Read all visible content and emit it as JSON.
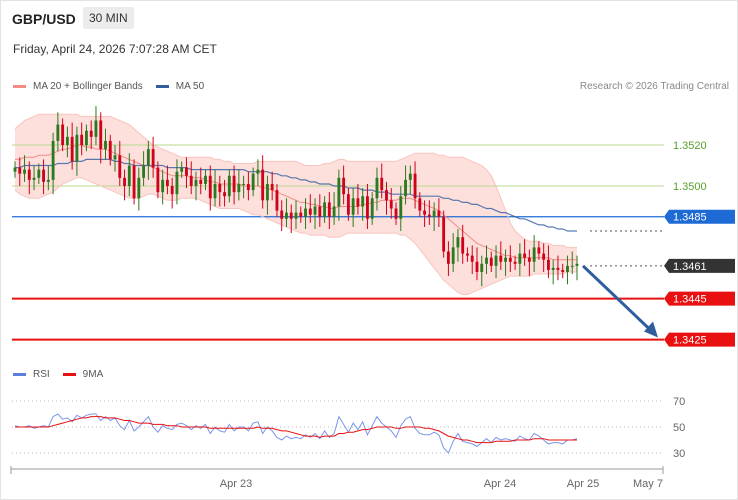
{
  "header": {
    "pair": "GBP/USD",
    "timeframe": "30 MIN",
    "datetime": "Friday, April 24, 2026 7:07:28 AM CET",
    "copyright": "Research © 2026 Trading Central"
  },
  "legend": {
    "main": [
      {
        "label": "MA 20 + Bollinger Bands",
        "color": "#f28b82"
      },
      {
        "label": "MA 50",
        "color": "#2f5d9e"
      }
    ],
    "rsi": [
      {
        "label": "RSI",
        "color": "#5b7fe0"
      },
      {
        "label": "9MA",
        "color": "#e81010"
      }
    ]
  },
  "chart_data": {
    "type": "candlestick",
    "xlabel": "",
    "ylabel": "",
    "ylim": [
      1.3416,
      1.3542
    ],
    "x_tick_labels": [
      "Apr 23",
      "Apr 24",
      "Apr 25",
      "May 7"
    ],
    "price_levels": [
      {
        "label": "1.3520",
        "value": 1.352,
        "color": "#5aa02c",
        "style": "pivot"
      },
      {
        "label": "1.3500",
        "value": 1.35,
        "color": "#5aa02c",
        "style": "pivot"
      },
      {
        "label": "1.3485",
        "value": 1.3485,
        "color": "#1e6bd6",
        "style": "resistance"
      },
      {
        "label": "1.3461",
        "value": 1.3461,
        "color": "#333333",
        "style": "current"
      },
      {
        "label": "1.3445",
        "value": 1.3445,
        "color": "#e81010",
        "style": "support"
      },
      {
        "label": "1.3425",
        "value": 1.3425,
        "color": "#e81010",
        "style": "support"
      }
    ],
    "candles_close": [
      1.3509,
      1.3506,
      1.3508,
      1.3503,
      1.3504,
      1.3508,
      1.3502,
      1.3503,
      1.3522,
      1.353,
      1.352,
      1.3524,
      1.3512,
      1.3525,
      1.352,
      1.3527,
      1.3524,
      1.3532,
      1.3518,
      1.3522,
      1.3513,
      1.3515,
      1.3504,
      1.35,
      1.351,
      1.3494,
      1.3504,
      1.351,
      1.3518,
      1.3509,
      1.3497,
      1.3503,
      1.35,
      1.3496,
      1.3507,
      1.3509,
      1.3505,
      1.35,
      1.3503,
      1.3501,
      1.3505,
      1.3494,
      1.3501,
      1.3497,
      1.3495,
      1.3505,
      1.3497,
      1.3501,
      1.3501,
      1.3498,
      1.3506,
      1.3508,
      1.3493,
      1.3501,
      1.3498,
      1.3488,
      1.3484,
      1.3487,
      1.3484,
      1.3487,
      1.3485,
      1.3489,
      1.3486,
      1.349,
      1.3485,
      1.3492,
      1.3485,
      1.349,
      1.3504,
      1.3496,
      1.3486,
      1.3494,
      1.349,
      1.3495,
      1.3484,
      1.3494,
      1.3504,
      1.3498,
      1.3493,
      1.3489,
      1.3484,
      1.3495,
      1.3503,
      1.3506,
      1.3494,
      1.3488,
      1.3486,
      1.3485,
      1.3488,
      1.3485,
      1.3468,
      1.3462,
      1.347,
      1.3475,
      1.3467,
      1.3466,
      1.3463,
      1.3458,
      1.3462,
      1.3465,
      1.3461,
      1.3466,
      1.3463,
      1.3465,
      1.3463,
      1.3462,
      1.3467,
      1.3465,
      1.3463,
      1.347,
      1.3467,
      1.3464,
      1.3459,
      1.346,
      1.3459,
      1.3458,
      1.3461,
      1.3461,
      1.3462
    ],
    "ma20": [
      1.3513,
      1.3513,
      1.3514,
      1.3514,
      1.3514,
      1.3515,
      1.3515,
      1.3515,
      1.3516,
      1.3517,
      1.3518,
      1.3518,
      1.3519,
      1.352,
      1.352,
      1.3519,
      1.3519,
      1.3518,
      1.3518,
      1.3518,
      1.3517,
      1.3516,
      1.3515,
      1.3514,
      1.3513,
      1.3512,
      1.3511,
      1.351,
      1.351,
      1.3509,
      1.3508,
      1.3507,
      1.3506,
      1.3505,
      1.3505,
      1.3505,
      1.3505,
      1.3504,
      1.3504,
      1.3504,
      1.3503,
      1.3502,
      1.3502,
      1.3501,
      1.3501,
      1.3501,
      1.3501,
      1.3501,
      1.35,
      1.35,
      1.35,
      1.35,
      1.3499,
      1.3499,
      1.3498,
      1.3497,
      1.3496,
      1.3495,
      1.3494,
      1.3493,
      1.3492,
      1.3492,
      1.3491,
      1.3491,
      1.349,
      1.349,
      1.3489,
      1.3489,
      1.349,
      1.349,
      1.349,
      1.349,
      1.349,
      1.3491,
      1.3491,
      1.3492,
      1.3492,
      1.3493,
      1.3493,
      1.3493,
      1.3493,
      1.3494,
      1.3494,
      1.3494,
      1.3493,
      1.3492,
      1.3491,
      1.349,
      1.3489,
      1.3488,
      1.3486,
      1.3484,
      1.3482,
      1.348,
      1.3478,
      1.3476,
      1.3474,
      1.3472,
      1.3471,
      1.347,
      1.3469,
      1.3468,
      1.3467,
      1.3466,
      1.3466,
      1.3465,
      1.3465,
      1.3465,
      1.3465,
      1.3465,
      1.3465,
      1.3465,
      1.3465,
      1.3464,
      1.3464,
      1.3464,
      1.3464,
      1.3464,
      1.3464
    ],
    "bb_upper": [
      1.3528,
      1.353,
      1.3532,
      1.3533,
      1.3534,
      1.3535,
      1.3535,
      1.3535,
      1.3535,
      1.3535,
      1.3535,
      1.3535,
      1.3535,
      1.3535,
      1.3534,
      1.3534,
      1.3534,
      1.3534,
      1.3534,
      1.3534,
      1.3534,
      1.3533,
      1.3532,
      1.3531,
      1.353,
      1.3528,
      1.3526,
      1.3524,
      1.3522,
      1.352,
      1.3519,
      1.3518,
      1.3517,
      1.3516,
      1.3515,
      1.3514,
      1.3514,
      1.3514,
      1.3514,
      1.3514,
      1.3514,
      1.3514,
      1.3513,
      1.3513,
      1.3512,
      1.3512,
      1.3511,
      1.3511,
      1.3511,
      1.3511,
      1.3511,
      1.3512,
      1.3512,
      1.3512,
      1.3512,
      1.3512,
      1.3512,
      1.3512,
      1.3512,
      1.3512,
      1.3511,
      1.351,
      1.351,
      1.351,
      1.351,
      1.3511,
      1.3511,
      1.3512,
      1.3513,
      1.3513,
      1.3512,
      1.3512,
      1.3512,
      1.3512,
      1.3512,
      1.3512,
      1.3512,
      1.3512,
      1.3512,
      1.3512,
      1.3512,
      1.3513,
      1.3514,
      1.3515,
      1.3516,
      1.3516,
      1.3516,
      1.3516,
      1.3516,
      1.3515,
      1.3515,
      1.3514,
      1.3514,
      1.3514,
      1.3514,
      1.3513,
      1.3512,
      1.3511,
      1.351,
      1.3508,
      1.3505,
      1.35,
      1.3494,
      1.3488,
      1.3482,
      1.3478,
      1.3476,
      1.3474,
      1.3473,
      1.3473,
      1.3473,
      1.3472,
      1.3472,
      1.3471,
      1.3471,
      1.3471,
      1.347,
      1.347,
      1.347
    ],
    "bb_lower": [
      1.3498,
      1.3496,
      1.3495,
      1.3494,
      1.3494,
      1.3494,
      1.3495,
      1.3496,
      1.3497,
      1.3499,
      1.3501,
      1.3502,
      1.3503,
      1.3504,
      1.3504,
      1.3503,
      1.3502,
      1.3501,
      1.35,
      1.3499,
      1.3498,
      1.3497,
      1.3496,
      1.3495,
      1.3494,
      1.3494,
      1.3494,
      1.3495,
      1.3496,
      1.3496,
      1.3495,
      1.3494,
      1.3493,
      1.3493,
      1.3493,
      1.3494,
      1.3494,
      1.3494,
      1.3494,
      1.3493,
      1.3492,
      1.3491,
      1.349,
      1.3489,
      1.3489,
      1.3489,
      1.3489,
      1.3489,
      1.3488,
      1.3487,
      1.3486,
      1.3486,
      1.3485,
      1.3484,
      1.3483,
      1.3482,
      1.3481,
      1.348,
      1.3479,
      1.3478,
      1.3477,
      1.3477,
      1.3476,
      1.3476,
      1.3476,
      1.3476,
      1.3475,
      1.3475,
      1.3475,
      1.3476,
      1.3477,
      1.3477,
      1.3477,
      1.3477,
      1.3477,
      1.3477,
      1.3477,
      1.3477,
      1.3477,
      1.3477,
      1.3477,
      1.3476,
      1.3476,
      1.3474,
      1.3472,
      1.3469,
      1.3466,
      1.3463,
      1.346,
      1.3457,
      1.3454,
      1.3452,
      1.345,
      1.3448,
      1.3447,
      1.3447,
      1.3448,
      1.3449,
      1.345,
      1.3451,
      1.3452,
      1.3453,
      1.3454,
      1.3455,
      1.3456,
      1.3456,
      1.3456,
      1.3456,
      1.3456,
      1.3457,
      1.3457,
      1.3457,
      1.3457,
      1.3457,
      1.3457,
      1.3457,
      1.3458,
      1.3458,
      1.3458
    ],
    "ma50": [
      1.3509,
      1.3509,
      1.351,
      1.351,
      1.351,
      1.351,
      1.351,
      1.351,
      1.351,
      1.3511,
      1.3511,
      1.3511,
      1.3512,
      1.3512,
      1.3512,
      1.3513,
      1.3513,
      1.3513,
      1.3513,
      1.3513,
      1.3513,
      1.3512,
      1.3512,
      1.3511,
      1.3511,
      1.351,
      1.351,
      1.351,
      1.351,
      1.351,
      1.351,
      1.351,
      1.3509,
      1.3509,
      1.3509,
      1.3509,
      1.3509,
      1.3508,
      1.3508,
      1.3508,
      1.3508,
      1.3508,
      1.3508,
      1.3508,
      1.3508,
      1.3508,
      1.3508,
      1.3508,
      1.3508,
      1.3507,
      1.3507,
      1.3507,
      1.3507,
      1.3507,
      1.3506,
      1.3506,
      1.3505,
      1.3505,
      1.3504,
      1.3504,
      1.3503,
      1.3503,
      1.3502,
      1.3502,
      1.3501,
      1.3501,
      1.3501,
      1.35,
      1.35,
      1.35,
      1.3499,
      1.3499,
      1.3499,
      1.3498,
      1.3498,
      1.3498,
      1.3497,
      1.3497,
      1.3497,
      1.3496,
      1.3496,
      1.3496,
      1.3496,
      1.3496,
      1.3495,
      1.3495,
      1.3495,
      1.3495,
      1.3495,
      1.3495,
      1.3494,
      1.3494,
      1.3493,
      1.3493,
      1.3492,
      1.3492,
      1.3491,
      1.3491,
      1.349,
      1.3489,
      1.3489,
      1.3488,
      1.3487,
      1.3487,
      1.3486,
      1.3485,
      1.3484,
      1.3484,
      1.3483,
      1.3482,
      1.3481,
      1.3481,
      1.348,
      1.348,
      1.3479,
      1.3479,
      1.3478,
      1.3478,
      1.3478
    ],
    "rsi": {
      "ylim": [
        20,
        80
      ],
      "ticks": [
        "70",
        "50",
        "30"
      ],
      "levels": [
        70,
        50,
        30
      ],
      "rsi": [
        51,
        50,
        50,
        51,
        49,
        50,
        51,
        50,
        58,
        60,
        56,
        57,
        54,
        59,
        57,
        59,
        60,
        60,
        55,
        58,
        55,
        57,
        51,
        48,
        55,
        47,
        50,
        54,
        58,
        50,
        46,
        51,
        49,
        48,
        52,
        53,
        51,
        48,
        51,
        49,
        52,
        45,
        50,
        47,
        46,
        52,
        47,
        50,
        50,
        47,
        53,
        54,
        45,
        50,
        47,
        42,
        40,
        43,
        41,
        42,
        41,
        44,
        42,
        45,
        41,
        47,
        42,
        45,
        58,
        52,
        46,
        53,
        48,
        54,
        44,
        51,
        58,
        53,
        50,
        47,
        42,
        51,
        56,
        58,
        49,
        45,
        44,
        44,
        46,
        44,
        34,
        30,
        39,
        45,
        39,
        38,
        37,
        35,
        38,
        41,
        38,
        42,
        40,
        41,
        40,
        39,
        43,
        41,
        40,
        45,
        43,
        40,
        37,
        38,
        38,
        37,
        40,
        40,
        41
      ],
      "ma9": [
        50,
        50,
        50,
        50,
        50,
        50,
        50,
        50,
        51,
        52,
        53,
        54,
        55,
        56,
        57,
        57,
        58,
        58,
        58,
        57,
        57,
        57,
        56,
        55,
        55,
        54,
        53,
        53,
        53,
        52,
        52,
        52,
        51,
        51,
        51,
        50,
        50,
        50,
        50,
        50,
        50,
        49,
        49,
        49,
        49,
        49,
        49,
        49,
        49,
        49,
        49,
        50,
        49,
        49,
        49,
        48,
        47,
        47,
        46,
        45,
        44,
        43,
        43,
        43,
        42,
        43,
        43,
        43,
        45,
        45,
        46,
        46,
        47,
        48,
        48,
        49,
        50,
        50,
        50,
        50,
        49,
        49,
        50,
        50,
        50,
        50,
        49,
        49,
        48,
        47,
        45,
        43,
        42,
        41,
        40,
        40,
        39,
        38,
        38,
        38,
        38,
        39,
        39,
        39,
        39,
        40,
        40,
        40,
        40,
        41,
        41,
        41,
        40,
        40,
        40,
        40,
        40,
        40,
        40
      ]
    }
  }
}
